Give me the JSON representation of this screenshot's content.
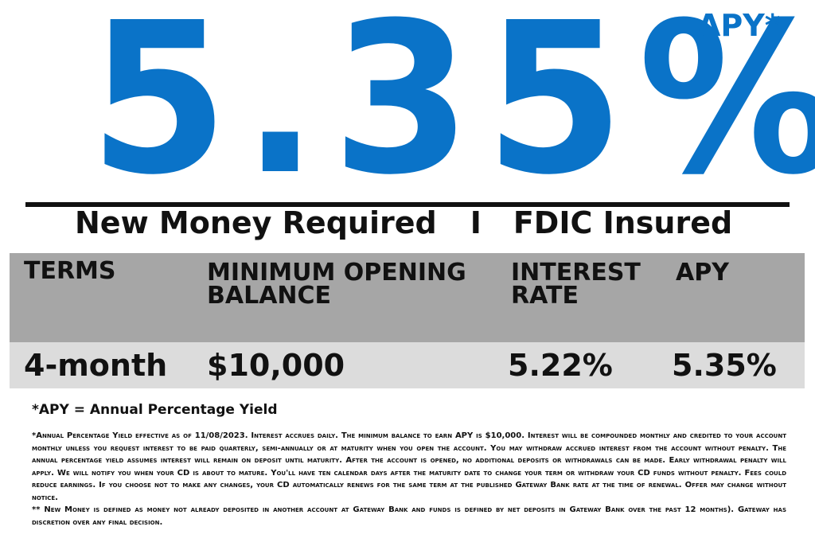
{
  "hero": {
    "rate": "5.35%",
    "apy_label": "APY*"
  },
  "subtitle": {
    "left": "New Money Required",
    "separator": "I",
    "right": "FDIC Insured"
  },
  "table": {
    "headers": {
      "terms": "TERMS",
      "min_balance": "MINIMUM OPENING\nBALANCE",
      "interest_rate": "INTEREST\nRATE",
      "apy": "APY"
    },
    "row": {
      "terms": "4-month",
      "min_balance": "$10,000",
      "interest_rate": "5.22%",
      "apy": "5.35%"
    }
  },
  "apy_definition": "*APY = Annual Percentage Yield",
  "fine_print": {
    "paragraph1": "*Annual Percentage Yield effective as of 11/08/2023. Interest accrues daily. The minimum balance to earn APY is $10,000. Interest will be compounded monthly and credited to your account monthly unless you request interest to be paid quarterly, semi-annually or at maturity when you open the account. You may withdraw accrued interest from the account without penalty. The annual percentage yield assumes interest will remain on deposit until maturity. After the account is opened, no additional deposits or withdrawals can be made. Early withdrawal penalty will apply. We will notify you when your CD is about to mature. You'll have ten calendar days after the maturity date to change your term or withdraw your CD funds without penalty. Fees could reduce earnings. If you choose not to make any changes, your CD automatically renews for the same term at the published Gateway Bank rate at the time of renewal. Offer may change without notice.",
    "paragraph2": "** New Money is defined as money not already deposited in another account at Gateway Bank and funds is defined by net deposits in Gateway Bank over the past 12 months). Gateway has discretion over any final decision."
  },
  "colors": {
    "brand_blue": "#0a73c8",
    "header_gray": "#a6a6a6",
    "row_gray": "#dcdcdc"
  }
}
